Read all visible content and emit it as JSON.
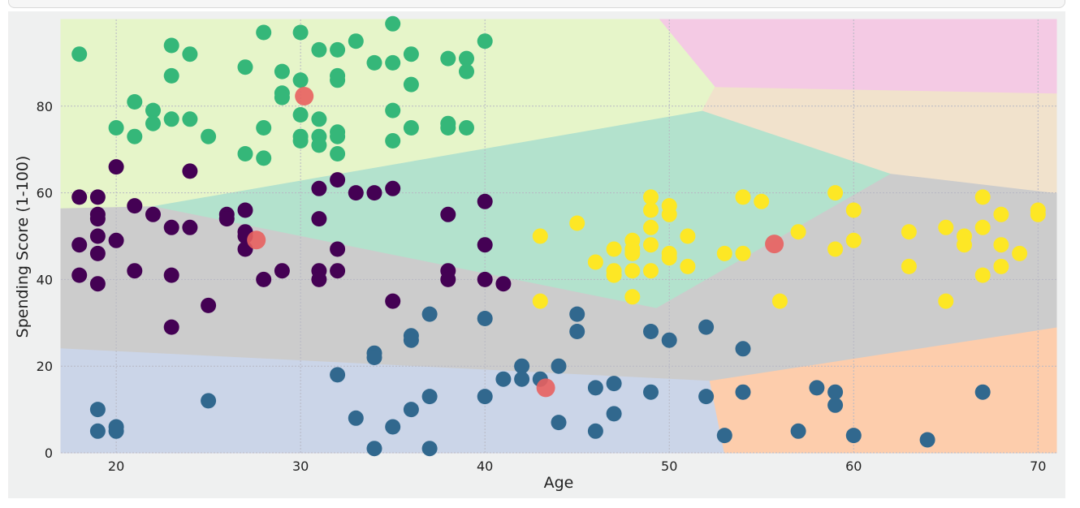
{
  "chart_data": {
    "type": "scatter",
    "xlabel": "Age",
    "ylabel": "Spending Score (1-100)",
    "xlim": [
      17,
      71
    ],
    "ylim": [
      0,
      100
    ],
    "xticks": [
      20,
      30,
      40,
      50,
      60,
      70
    ],
    "yticks": [
      0,
      20,
      40,
      60,
      80
    ],
    "grid": true,
    "background_regions": [
      {
        "color": "#cbd5e8",
        "polygon": [
          [
            17,
            0
          ],
          [
            17,
            24.2
          ],
          [
            52.2,
            16.7
          ],
          [
            53,
            0
          ]
        ]
      },
      {
        "color": "#fdcdac",
        "polygon": [
          [
            52.2,
            16.7
          ],
          [
            53,
            0
          ],
          [
            71,
            0
          ],
          [
            71,
            29
          ]
        ]
      },
      {
        "color": "#cccccc",
        "polygon": [
          [
            17,
            24.2
          ],
          [
            17,
            56.5
          ],
          [
            22,
            57
          ],
          [
            49.3,
            33.5
          ],
          [
            62,
            64.5
          ],
          [
            71,
            60
          ],
          [
            71,
            29
          ],
          [
            52.2,
            16.7
          ]
        ]
      },
      {
        "color": "#b3e2cd",
        "polygon": [
          [
            22,
            57
          ],
          [
            51.8,
            79
          ],
          [
            62,
            64.5
          ],
          [
            49.3,
            33.5
          ]
        ]
      },
      {
        "color": "#e6f5c9",
        "polygon": [
          [
            17,
            56.5
          ],
          [
            22,
            57
          ],
          [
            51.8,
            79
          ],
          [
            52.5,
            84.5
          ],
          [
            49.5,
            100
          ],
          [
            17,
            100
          ]
        ]
      },
      {
        "color": "#f1e2cc",
        "polygon": [
          [
            51.8,
            79
          ],
          [
            52.5,
            84.5
          ],
          [
            71,
            83
          ],
          [
            71,
            60
          ],
          [
            62,
            64.5
          ]
        ]
      },
      {
        "color": "#f4cae4",
        "polygon": [
          [
            52.5,
            84.5
          ],
          [
            49.5,
            100
          ],
          [
            71,
            100
          ],
          [
            71,
            83
          ]
        ]
      }
    ],
    "series": [
      {
        "color": "#35b779",
        "points": [
          [
            18,
            92
          ],
          [
            20,
            75
          ],
          [
            21,
            73
          ],
          [
            21,
            81
          ],
          [
            22,
            79
          ],
          [
            22,
            76
          ],
          [
            23,
            94
          ],
          [
            23,
            87
          ],
          [
            23,
            77
          ],
          [
            24,
            92
          ],
          [
            24,
            77
          ],
          [
            25,
            73
          ],
          [
            27,
            89
          ],
          [
            27,
            69
          ],
          [
            28,
            97
          ],
          [
            28,
            75
          ],
          [
            28,
            68
          ],
          [
            29,
            88
          ],
          [
            29,
            83
          ],
          [
            29,
            82
          ],
          [
            30,
            97
          ],
          [
            30,
            86
          ],
          [
            30,
            78
          ],
          [
            30,
            73
          ],
          [
            30,
            72
          ],
          [
            31,
            93
          ],
          [
            31,
            77
          ],
          [
            31,
            73
          ],
          [
            31,
            71
          ],
          [
            32,
            93
          ],
          [
            32,
            87
          ],
          [
            32,
            86
          ],
          [
            32,
            74
          ],
          [
            32,
            73
          ],
          [
            32,
            69
          ],
          [
            33,
            95
          ],
          [
            34,
            90
          ],
          [
            35,
            99
          ],
          [
            35,
            90
          ],
          [
            35,
            79
          ],
          [
            35,
            72
          ],
          [
            36,
            92
          ],
          [
            36,
            85
          ],
          [
            36,
            75
          ],
          [
            38,
            91
          ],
          [
            38,
            76
          ],
          [
            38,
            75
          ],
          [
            39,
            91
          ],
          [
            39,
            88
          ],
          [
            39,
            75
          ],
          [
            40,
            95
          ]
        ]
      },
      {
        "color": "#440154",
        "points": [
          [
            18,
            59
          ],
          [
            18,
            48
          ],
          [
            18,
            41
          ],
          [
            19,
            59
          ],
          [
            19,
            55
          ],
          [
            19,
            54
          ],
          [
            19,
            50
          ],
          [
            19,
            46
          ],
          [
            19,
            39
          ],
          [
            20,
            66
          ],
          [
            20,
            49
          ],
          [
            21,
            57
          ],
          [
            21,
            42
          ],
          [
            22,
            55
          ],
          [
            23,
            52
          ],
          [
            23,
            41
          ],
          [
            23,
            29
          ],
          [
            24,
            65
          ],
          [
            24,
            52
          ],
          [
            25,
            34
          ],
          [
            26,
            55
          ],
          [
            26,
            54
          ],
          [
            27,
            56
          ],
          [
            27,
            51
          ],
          [
            27,
            50
          ],
          [
            27,
            47
          ],
          [
            28,
            40
          ],
          [
            29,
            42
          ],
          [
            31,
            61
          ],
          [
            31,
            54
          ],
          [
            31,
            42
          ],
          [
            31,
            40
          ],
          [
            32,
            63
          ],
          [
            32,
            47
          ],
          [
            32,
            42
          ],
          [
            33,
            60
          ],
          [
            34,
            60
          ],
          [
            35,
            61
          ],
          [
            35,
            35
          ],
          [
            38,
            55
          ],
          [
            38,
            42
          ],
          [
            38,
            40
          ],
          [
            40,
            58
          ],
          [
            40,
            48
          ],
          [
            40,
            40
          ],
          [
            41,
            39
          ]
        ]
      },
      {
        "color": "#31688e",
        "points": [
          [
            19,
            10
          ],
          [
            19,
            5
          ],
          [
            20,
            6
          ],
          [
            20,
            5
          ],
          [
            25,
            12
          ],
          [
            32,
            18
          ],
          [
            33,
            8
          ],
          [
            34,
            23
          ],
          [
            34,
            22
          ],
          [
            34,
            1
          ],
          [
            35,
            6
          ],
          [
            36,
            27
          ],
          [
            36,
            26
          ],
          [
            36,
            10
          ],
          [
            37,
            32
          ],
          [
            37,
            13
          ],
          [
            37,
            1
          ],
          [
            40,
            31
          ],
          [
            40,
            13
          ],
          [
            41,
            17
          ],
          [
            42,
            20
          ],
          [
            42,
            17
          ],
          [
            43,
            17
          ],
          [
            44,
            20
          ],
          [
            44,
            7
          ],
          [
            45,
            32
          ],
          [
            45,
            28
          ],
          [
            46,
            15
          ],
          [
            46,
            5
          ],
          [
            47,
            16
          ],
          [
            47,
            9
          ],
          [
            49,
            28
          ],
          [
            49,
            14
          ],
          [
            50,
            26
          ],
          [
            52,
            29
          ],
          [
            52,
            13
          ],
          [
            53,
            4
          ],
          [
            54,
            24
          ],
          [
            54,
            14
          ],
          [
            57,
            5
          ],
          [
            58,
            15
          ],
          [
            59,
            14
          ],
          [
            59,
            11
          ],
          [
            60,
            4
          ],
          [
            64,
            3
          ],
          [
            67,
            14
          ]
        ]
      },
      {
        "color": "#fde725",
        "points": [
          [
            43,
            50
          ],
          [
            43,
            35
          ],
          [
            45,
            53
          ],
          [
            46,
            44
          ],
          [
            47,
            47
          ],
          [
            47,
            42
          ],
          [
            47,
            41
          ],
          [
            48,
            49
          ],
          [
            48,
            47
          ],
          [
            48,
            46
          ],
          [
            48,
            42
          ],
          [
            48,
            36
          ],
          [
            49,
            59
          ],
          [
            49,
            56
          ],
          [
            49,
            52
          ],
          [
            49,
            48
          ],
          [
            49,
            42
          ],
          [
            50,
            57
          ],
          [
            50,
            55
          ],
          [
            50,
            46
          ],
          [
            50,
            45
          ],
          [
            51,
            50
          ],
          [
            51,
            43
          ],
          [
            53,
            46
          ],
          [
            54,
            59
          ],
          [
            54,
            46
          ],
          [
            55,
            58
          ],
          [
            56,
            35
          ],
          [
            57,
            51
          ],
          [
            59,
            60
          ],
          [
            59,
            47
          ],
          [
            60,
            56
          ],
          [
            60,
            49
          ],
          [
            63,
            51
          ],
          [
            63,
            43
          ],
          [
            65,
            52
          ],
          [
            65,
            35
          ],
          [
            66,
            50
          ],
          [
            66,
            48
          ],
          [
            67,
            59
          ],
          [
            67,
            52
          ],
          [
            67,
            41
          ],
          [
            68,
            55
          ],
          [
            68,
            48
          ],
          [
            68,
            43
          ],
          [
            69,
            46
          ],
          [
            70,
            56
          ],
          [
            70,
            55
          ]
        ]
      },
      {
        "color": "#e8605f",
        "points": [
          [
            30.2,
            82.3
          ],
          [
            27.6,
            49.1
          ],
          [
            43.3,
            15.0
          ],
          [
            55.7,
            48.2
          ]
        ]
      }
    ]
  }
}
